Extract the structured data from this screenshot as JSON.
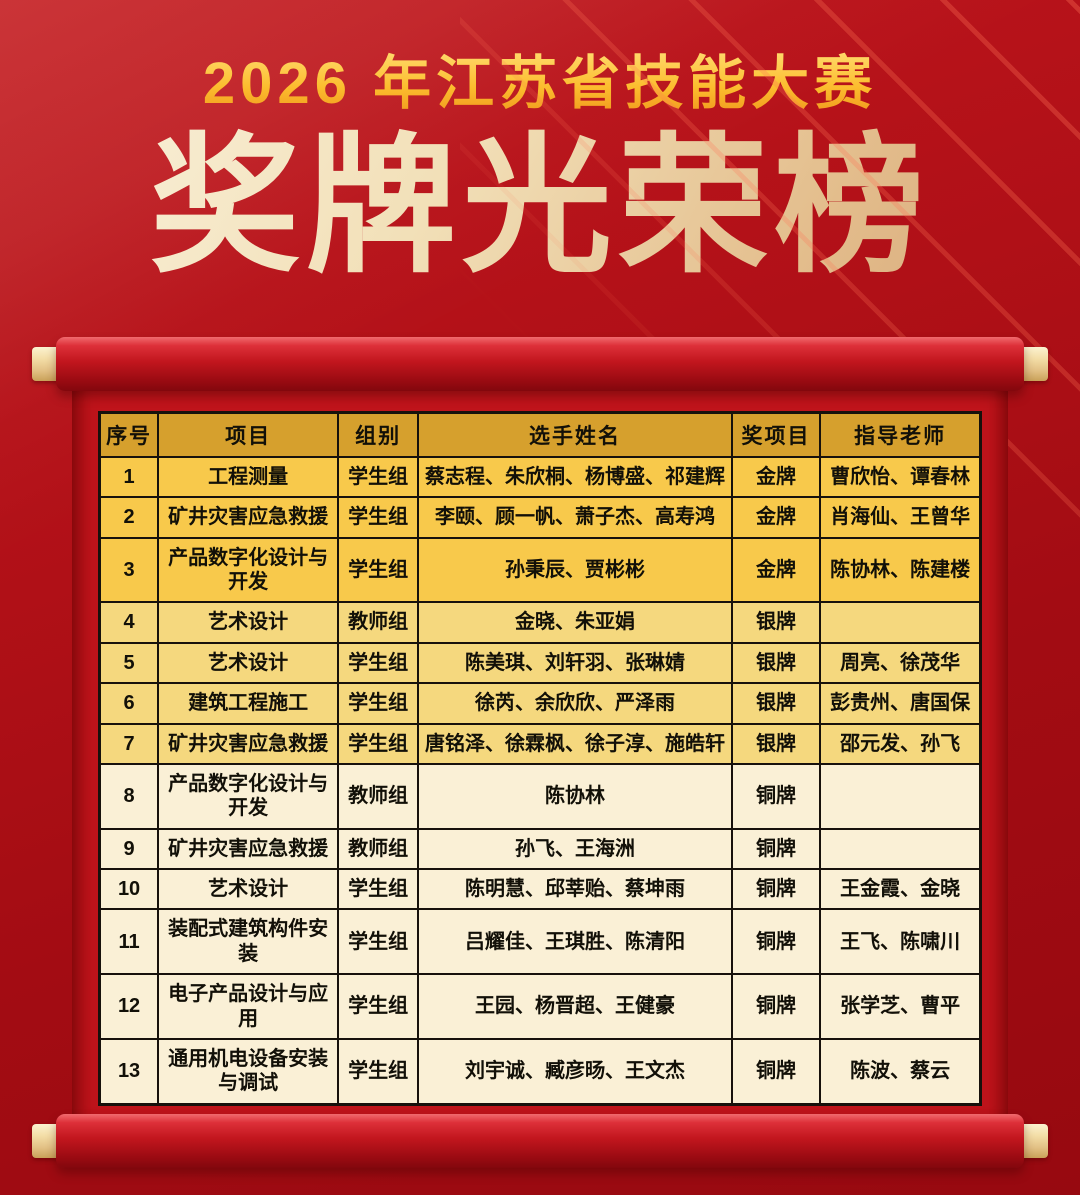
{
  "header": {
    "subtitle": "2026 年江苏省技能大赛",
    "title": "奖牌光荣榜"
  },
  "colors": {
    "background_red": "#a30c13",
    "scroll_body_red": "#bf141b",
    "rod_red": "#c2161e",
    "cap_gold": "#f3dda6",
    "subtitle_gold": "#fcbd2e",
    "title_champagne": "#f2e0b8",
    "table_header_bg": "#d6a02d",
    "cell_border": "#17110c",
    "row_gold": "#f8c94b",
    "row_silver": "#f5d87e",
    "row_bronze": "#faf0d6"
  },
  "table": {
    "columns": [
      "序号",
      "项目",
      "组别",
      "选手姓名",
      "奖项目",
      "指导老师"
    ],
    "field_order": [
      "no",
      "project",
      "group",
      "players",
      "medal",
      "teachers"
    ],
    "row_background_by_medal": {
      "金牌": "#f8c94b",
      "银牌": "#f5d87e",
      "铜牌": "#faf0d6"
    },
    "rows": [
      {
        "no": "1",
        "project": "工程测量",
        "group": "学生组",
        "players": "蔡志程、朱欣桐、杨博盛、祁建辉",
        "medal": "金牌",
        "teachers": "曹欣怡、谭春林"
      },
      {
        "no": "2",
        "project": "矿井灾害应急救援",
        "group": "学生组",
        "players": "李颐、顾一帆、萧子杰、高寿鸿",
        "medal": "金牌",
        "teachers": "肖海仙、王曾华"
      },
      {
        "no": "3",
        "project": "产品数字化设计与开发",
        "group": "学生组",
        "players": "孙秉辰、贾彬彬",
        "medal": "金牌",
        "teachers": "陈协林、陈建楼"
      },
      {
        "no": "4",
        "project": "艺术设计",
        "group": "教师组",
        "players": "金晓、朱亚娟",
        "medal": "银牌",
        "teachers": ""
      },
      {
        "no": "5",
        "project": "艺术设计",
        "group": "学生组",
        "players": "陈美琪、刘轩羽、张琳婧",
        "medal": "银牌",
        "teachers": "周亮、徐茂华"
      },
      {
        "no": "6",
        "project": "建筑工程施工",
        "group": "学生组",
        "players": "徐芮、余欣欣、严泽雨",
        "medal": "银牌",
        "teachers": "彭贵州、唐国保"
      },
      {
        "no": "7",
        "project": "矿井灾害应急救援",
        "group": "学生组",
        "players": "唐铭泽、徐霖枫、徐子淳、施皓轩",
        "medal": "银牌",
        "teachers": "邵元发、孙飞"
      },
      {
        "no": "8",
        "project": "产品数字化设计与开发",
        "group": "教师组",
        "players": "陈协林",
        "medal": "铜牌",
        "teachers": ""
      },
      {
        "no": "9",
        "project": "矿井灾害应急救援",
        "group": "教师组",
        "players": "孙飞、王海洲",
        "medal": "铜牌",
        "teachers": ""
      },
      {
        "no": "10",
        "project": "艺术设计",
        "group": "学生组",
        "players": "陈明慧、邱莘贻、蔡坤雨",
        "medal": "铜牌",
        "teachers": "王金霞、金晓"
      },
      {
        "no": "11",
        "project": "装配式建筑构件安装",
        "group": "学生组",
        "players": "吕耀佳、王琪胜、陈清阳",
        "medal": "铜牌",
        "teachers": "王飞、陈啸川"
      },
      {
        "no": "12",
        "project": "电子产品设计与应用",
        "group": "学生组",
        "players": "王园、杨晋超、王健豪",
        "medal": "铜牌",
        "teachers": "张学芝、曹平"
      },
      {
        "no": "13",
        "project": "通用机电设备安装与调试",
        "group": "学生组",
        "players": "刘宇诚、臧彦旸、王文杰",
        "medal": "铜牌",
        "teachers": "陈波、蔡云"
      }
    ]
  }
}
